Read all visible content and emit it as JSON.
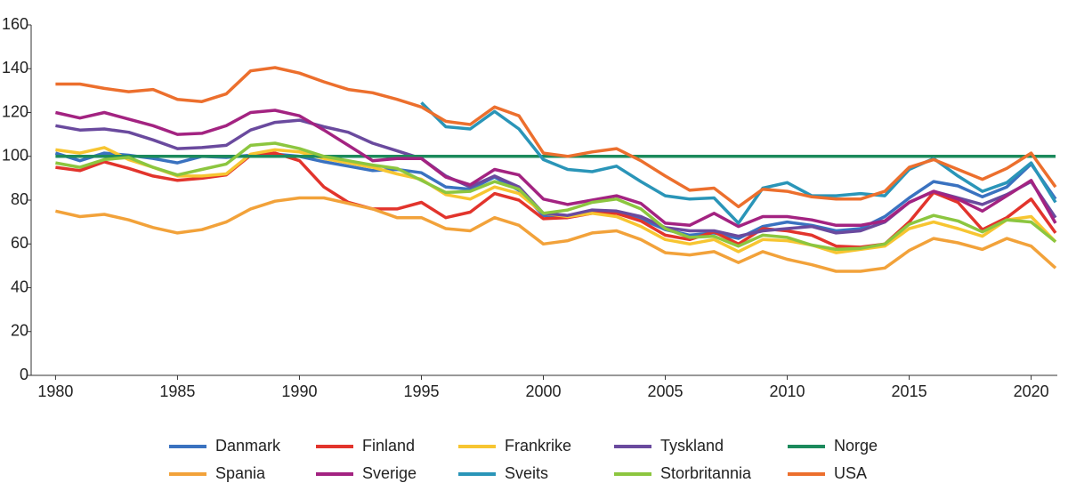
{
  "chart_data": {
    "type": "line",
    "x": [
      1980,
      1981,
      1982,
      1983,
      1984,
      1985,
      1986,
      1987,
      1988,
      1989,
      1990,
      1991,
      1992,
      1993,
      1994,
      1995,
      1996,
      1997,
      1998,
      1999,
      2000,
      2001,
      2002,
      2003,
      2004,
      2005,
      2006,
      2007,
      2008,
      2009,
      2010,
      2011,
      2012,
      2013,
      2014,
      2015,
      2016,
      2017,
      2018,
      2019,
      2020,
      2021
    ],
    "xlim": [
      1979,
      2021
    ],
    "xticks": [
      1980,
      1985,
      1990,
      1995,
      2000,
      2005,
      2010,
      2015,
      2020
    ],
    "ylim": [
      0,
      160
    ],
    "yticks": [
      0,
      20,
      40,
      60,
      80,
      100,
      120,
      140,
      160
    ],
    "series": [
      {
        "name": "Danmark",
        "color": "#3a72c0",
        "values": [
          101.5,
          98,
          101.5,
          100.5,
          99,
          97,
          100,
          99.5,
          100.5,
          101,
          100,
          97.5,
          95.5,
          93.5,
          94,
          92.5,
          86,
          85,
          90.5,
          84.5,
          73,
          73,
          74.5,
          74,
          71.5,
          66.5,
          64,
          65,
          62.5,
          68,
          70,
          68.5,
          66,
          67,
          72.5,
          81,
          88.5,
          86.5,
          81.5,
          86,
          96.5,
          80.5
        ]
      },
      {
        "name": "Finland",
        "color": "#e2342c",
        "values": [
          95,
          93.5,
          97.5,
          94.5,
          91,
          89,
          90,
          91.5,
          100.5,
          101.5,
          98,
          86,
          79,
          76,
          76,
          79,
          72,
          74.5,
          83,
          80,
          71.5,
          72,
          74,
          74,
          70.5,
          64,
          62,
          65.5,
          60,
          67,
          66,
          64,
          59,
          58.5,
          60,
          70,
          83.5,
          79,
          66.5,
          72,
          80.5,
          65
        ]
      },
      {
        "name": "Frankrike",
        "color": "#f7c531",
        "values": [
          103,
          101.5,
          104,
          98.5,
          95,
          91,
          91,
          92,
          101,
          103,
          102,
          99,
          97,
          95,
          92,
          89.5,
          82.5,
          80.5,
          86,
          83,
          74,
          72.5,
          74,
          72.5,
          68,
          62,
          60,
          62,
          56.5,
          62,
          61.5,
          59.5,
          56,
          57.5,
          59,
          67,
          70,
          67,
          63.5,
          71,
          72.5,
          61
        ]
      },
      {
        "name": "Tyskland",
        "color": "#6a4a9e",
        "values": [
          114,
          112,
          112.5,
          111,
          107.5,
          103.5,
          104,
          105,
          112,
          115.5,
          116.5,
          113.5,
          111,
          106,
          102.5,
          99,
          91,
          86,
          91,
          86,
          74,
          73,
          75.5,
          75,
          72.5,
          67.5,
          66,
          66,
          63.5,
          66,
          67,
          68,
          65,
          66,
          70,
          79,
          84,
          81,
          78,
          82.5,
          88.5,
          72
        ]
      },
      {
        "name": "Norge",
        "color": "#1c8a5c",
        "values": [
          100,
          100,
          100,
          100,
          100,
          100,
          100,
          100,
          100,
          100,
          100,
          100,
          100,
          100,
          100,
          100,
          100,
          100,
          100,
          100,
          100,
          100,
          100,
          100,
          100,
          100,
          100,
          100,
          100,
          100,
          100,
          100,
          100,
          100,
          100,
          100,
          100,
          100,
          100,
          100,
          100,
          100
        ]
      },
      {
        "name": "Spania",
        "color": "#f2a23a",
        "values": [
          75,
          72.5,
          73.5,
          71,
          67.5,
          65,
          66.5,
          70,
          76,
          79.5,
          81,
          81,
          78.5,
          76,
          72,
          72,
          67,
          66,
          72,
          68.5,
          60,
          61.5,
          65,
          66,
          62,
          56,
          55,
          56.5,
          51.5,
          56.5,
          53,
          50.5,
          47.5,
          47.5,
          49,
          57,
          62.5,
          60.5,
          57.5,
          62.5,
          59,
          49
        ]
      },
      {
        "name": "Sverige",
        "color": "#a32381",
        "values": [
          120,
          117.5,
          120,
          117,
          114,
          110,
          110.5,
          114,
          120,
          121,
          118.5,
          112,
          105,
          98,
          99,
          99,
          90.5,
          87,
          94,
          91.5,
          80.5,
          78,
          80,
          82,
          78.5,
          69.5,
          68.5,
          74,
          68,
          72.5,
          72.5,
          71,
          68.5,
          68.5,
          70.5,
          79,
          84,
          80.5,
          75,
          82,
          89,
          69.5
        ]
      },
      {
        "name": "Sveits",
        "color": "#2a95b8",
        "values": [
          null,
          null,
          null,
          null,
          null,
          null,
          null,
          null,
          null,
          null,
          null,
          null,
          null,
          null,
          null,
          124.5,
          113.5,
          112.5,
          120.5,
          112.5,
          98.5,
          94,
          93,
          95.5,
          88.5,
          82,
          80.5,
          81,
          69.5,
          85.5,
          88,
          82,
          82,
          83,
          82,
          94,
          99,
          91,
          84,
          88,
          97,
          79
        ]
      },
      {
        "name": "Storbritannia",
        "color": "#8cc63f",
        "values": [
          97,
          95,
          98.5,
          99.5,
          95,
          91.5,
          94,
          96.5,
          105,
          106,
          103.5,
          100,
          98,
          96,
          94.5,
          89,
          83.5,
          84,
          88.5,
          85,
          74,
          75.5,
          79,
          80.5,
          76,
          67,
          63,
          63.5,
          59,
          64,
          63,
          59.5,
          57.5,
          58,
          60,
          69,
          73,
          70.5,
          65.5,
          71,
          70,
          61
        ]
      },
      {
        "name": "USA",
        "color": "#ec6f2d",
        "values": [
          133,
          133,
          131,
          129.5,
          130.5,
          126,
          125,
          128.5,
          139,
          140.5,
          138,
          134,
          130.5,
          129,
          126,
          122.5,
          116,
          114.5,
          122.5,
          118.5,
          101.5,
          100,
          102,
          103.5,
          98,
          91,
          84.5,
          85.5,
          77,
          85,
          84,
          81.5,
          80.5,
          80.5,
          84,
          95,
          98.5,
          94,
          89.5,
          94.5,
          101.5,
          86
        ]
      }
    ]
  }
}
